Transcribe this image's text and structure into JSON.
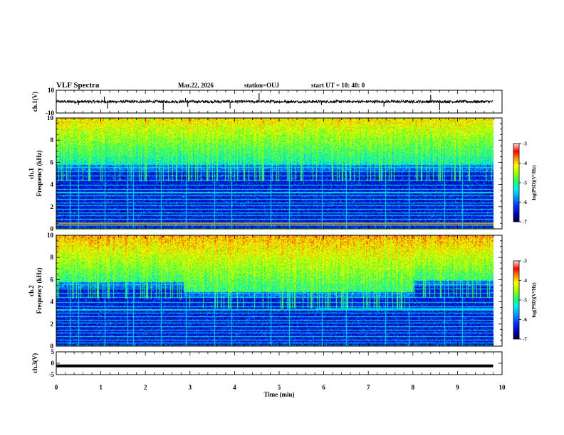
{
  "header": {
    "title": "VLF Spectra",
    "date": "Mar.22, 2026",
    "station": "station=OUJ",
    "start_ut": "start  UT =   10: 40: 0"
  },
  "chart_data": [
    {
      "type": "line",
      "name": "ch1-waveform",
      "ylabel": "ch.1(V)",
      "ylim": [
        -10,
        10
      ],
      "yticks": [
        {
          "v": 10,
          "label": "10"
        },
        {
          "v": -10,
          "label": "-10"
        }
      ],
      "x_extent_min": 9.8,
      "baseline_v": 0,
      "noise_amplitude_v": 1.2,
      "spike_times_min": [
        0.5,
        1.08,
        1.15,
        2.4,
        2.9,
        2.95,
        3.9,
        4.55,
        5.95,
        7.35,
        8.4,
        8.6
      ]
    },
    {
      "type": "heatmap",
      "name": "ch1-spectrogram",
      "ylabel": "ch.1\nFrequency (kHz)",
      "ylim": [
        0,
        10
      ],
      "yticks": [
        0,
        2,
        4,
        6,
        8,
        10
      ],
      "x_extent_min": 9.8,
      "color_scale": "log(PSD)(V²/Hz)",
      "clim": [
        -7,
        -3
      ],
      "colorbar_ticks": [
        -3,
        -4,
        -5,
        -6,
        -7
      ],
      "colorbar_label": "log(PSD)(V²/Hz)",
      "band_edge_khz": 5.8,
      "strong_line_khz": 0.5,
      "vertical_impulse_times_min": [
        0.3,
        0.5,
        1.08,
        1.6,
        1.72,
        2.35,
        2.9,
        3.55,
        3.92,
        4.8,
        5.22,
        5.95,
        6.5,
        7.38,
        7.9,
        8.7,
        9.1
      ]
    },
    {
      "type": "heatmap",
      "name": "ch2-spectrogram",
      "ylabel": "ch.2\nFrequency (kHz)",
      "ylim": [
        0,
        10
      ],
      "yticks": [
        0,
        2,
        4,
        6,
        8,
        10
      ],
      "x_extent_min": 9.8,
      "color_scale": "log(PSD)(V²/Hz)",
      "clim": [
        -7,
        -3
      ],
      "colorbar_ticks": [
        -3,
        -4,
        -5,
        -6,
        -7
      ],
      "colorbar_label": "log(PSD)(V²/Hz)",
      "band_edge_khz": 5.8,
      "band_segments": [
        {
          "t0": 0.0,
          "t1": 2.85,
          "f": 5.8
        },
        {
          "t0": 2.85,
          "t1": 8.0,
          "f": 4.9
        },
        {
          "t0": 8.0,
          "t1": 9.8,
          "f": 5.9
        }
      ],
      "line_3_4khz_from_min": 5.8,
      "vertical_impulse_times_min": [
        0.3,
        0.5,
        1.08,
        1.6,
        1.72,
        2.35,
        2.9,
        3.55,
        3.92,
        4.8,
        5.22,
        5.95,
        6.5,
        7.38,
        7.9,
        8.7,
        9.1
      ]
    },
    {
      "type": "line",
      "name": "ch3-waveform",
      "ylabel": "ch.3(V)",
      "ylim": [
        -5,
        5
      ],
      "yticks": [
        {
          "v": 5,
          "label": "5"
        },
        {
          "v": 0,
          "label": "0"
        },
        {
          "v": -5,
          "label": "-5"
        }
      ],
      "x_extent_min": 9.8,
      "level_v": -1.2
    }
  ],
  "x_axis": {
    "label": "Time (min)",
    "range": [
      0,
      10
    ],
    "ticks": [
      "0",
      "1",
      "2",
      "3",
      "4",
      "5",
      "6",
      "7",
      "8",
      "9",
      "10"
    ]
  }
}
